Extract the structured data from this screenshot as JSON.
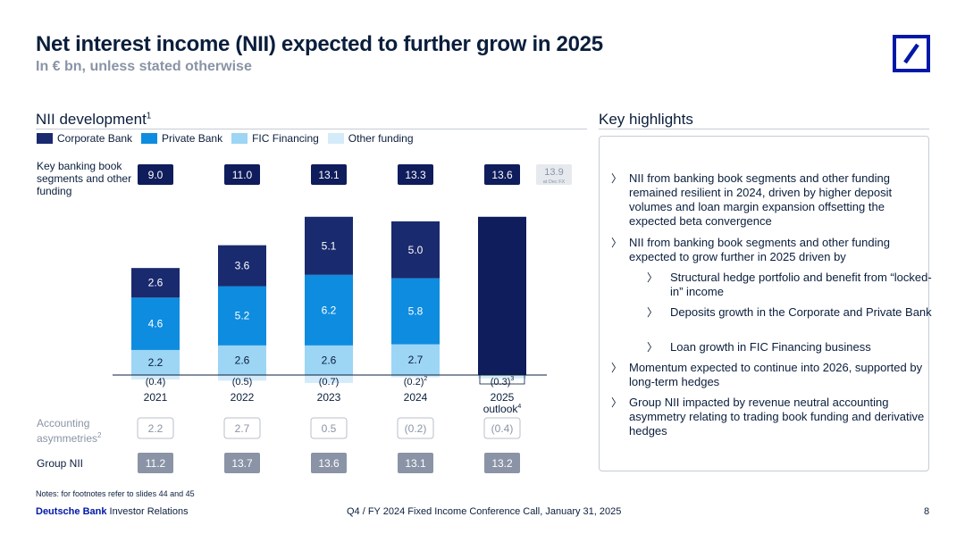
{
  "header": {
    "title": "Net interest income (NII) expected to further grow in 2025",
    "subtitle": "In € bn, unless stated otherwise"
  },
  "colors": {
    "corporate_bank": "#1a2a6e",
    "private_bank": "#0e8ce0",
    "fic_financing": "#9dd5f5",
    "other_funding": "#d4ebfa",
    "navy_box": "#101d5c",
    "brand_blue": "#0018a8",
    "grey_box": "#8a94a6"
  },
  "left": {
    "section_title": "NII development",
    "footnote_marker": "1",
    "row_labels": {
      "key_banking": "Key banking book segments and other funding",
      "accounting": "Accounting asymmetries",
      "accounting_footnote": "2",
      "group_nii": "Group NII"
    }
  },
  "chart_data": {
    "type": "bar",
    "stacked": true,
    "title": "NII development",
    "categories": [
      "2021",
      "2022",
      "2023",
      "2024",
      "2025 outlook"
    ],
    "category_footnotes": [
      "",
      "",
      "",
      "",
      "4"
    ],
    "series": [
      {
        "name": "Other funding",
        "values": [
          -0.4,
          -0.5,
          -0.7,
          -0.2,
          -0.3
        ],
        "labels": [
          "(0.4)",
          "(0.5)",
          "(0.7)",
          "(0.2)",
          "(0.3)"
        ],
        "footnotes": [
          "",
          "",
          "",
          "2",
          "3"
        ]
      },
      {
        "name": "FIC Financing",
        "values": [
          2.2,
          2.6,
          2.6,
          2.7,
          null
        ],
        "labels": [
          "2.2",
          "2.6",
          "2.6",
          "2.7",
          ""
        ]
      },
      {
        "name": "Private Bank",
        "values": [
          4.6,
          5.2,
          6.2,
          5.8,
          null
        ],
        "labels": [
          "4.6",
          "5.2",
          "6.2",
          "5.8",
          ""
        ]
      },
      {
        "name": "Corporate Bank",
        "values": [
          2.6,
          3.6,
          5.1,
          5.0,
          null
        ],
        "labels": [
          "2.6",
          "3.6",
          "5.1",
          "5.0",
          ""
        ]
      }
    ],
    "outlook_total_2025": 13.9,
    "legend_order": [
      "Corporate Bank",
      "Private Bank",
      "FIC Financing",
      "Other funding"
    ],
    "key_banking_totals": [
      "9.0",
      "11.0",
      "13.1",
      "13.3",
      "13.6"
    ],
    "fx_note": {
      "value": "13.9",
      "label": "at Dec FX"
    },
    "accounting_asymmetries": [
      "2.2",
      "2.7",
      "0.5",
      "(0.2)",
      "(0.4)"
    ],
    "group_nii": [
      "11.2",
      "13.7",
      "13.6",
      "13.1",
      "13.2"
    ],
    "ylim": [
      -0.7,
      14
    ]
  },
  "right": {
    "section_title": "Key highlights",
    "bullets": [
      {
        "level": 1,
        "text": "NII from banking book segments and other funding remained resilient in 2024, driven by higher deposit volumes and loan margin expansion offsetting the expected beta convergence"
      },
      {
        "level": 1,
        "text": "NII from banking book segments and other funding expected to grow further in 2025 driven by"
      },
      {
        "level": 2,
        "text": "Structural hedge portfolio and benefit from “locked-in” income"
      },
      {
        "level": 2,
        "text": "Deposits growth in the Corporate and Private Bank"
      },
      {
        "level": 2,
        "text": "Loan growth in FIC Financing business"
      },
      {
        "level": 1,
        "text": "Momentum expected to continue into 2026, supported by long-term hedges"
      },
      {
        "level": 1,
        "text": "Group NII impacted by revenue neutral accounting asymmetry relating to trading book funding and derivative hedges"
      }
    ]
  },
  "footer": {
    "notes": "Notes: for footnotes refer to slides 44 and 45",
    "brand": "Deutsche Bank",
    "brand_suffix": "Investor Relations",
    "event": "Q4 / FY 2024 Fixed Income Conference Call, January 31, 2025",
    "page": "8"
  }
}
